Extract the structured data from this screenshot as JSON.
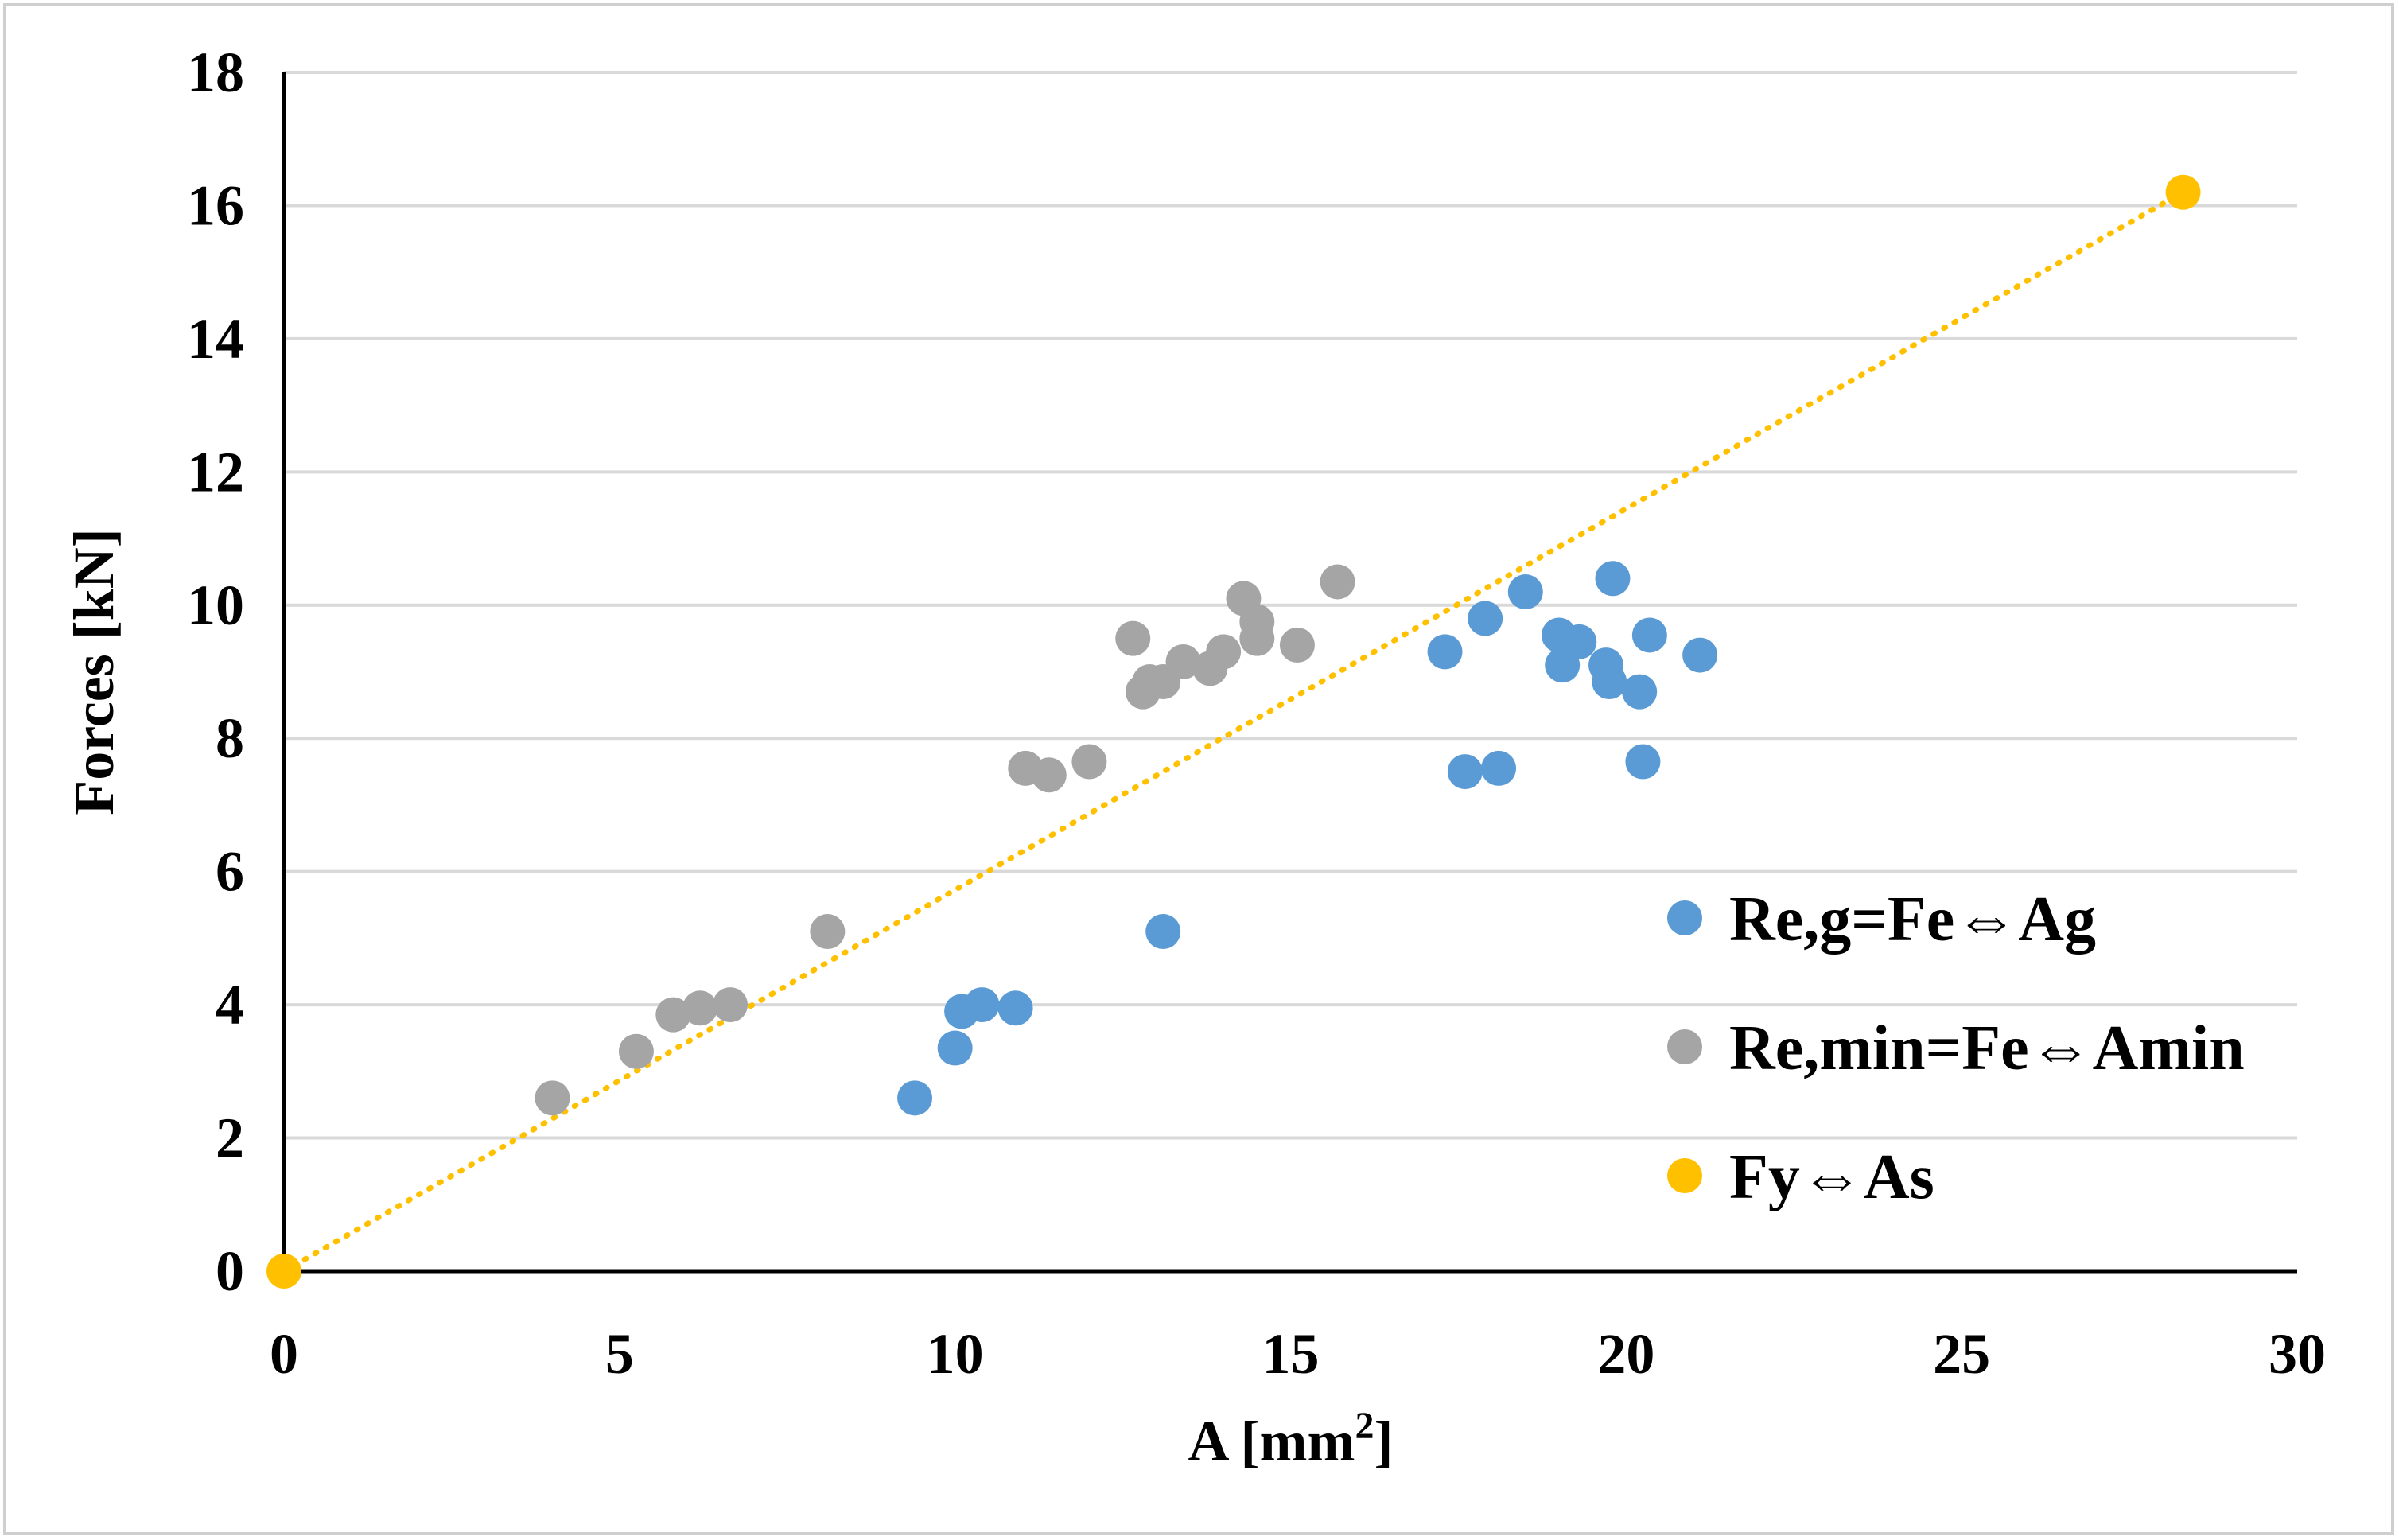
{
  "chart_data": {
    "type": "scatter",
    "title": "",
    "xlabel": "A [mm",
    "xlabel_superscript": "2",
    "xlabel_suffix": "]",
    "ylabel": "Forces [kN]",
    "xlim": [
      0,
      30
    ],
    "ylim": [
      0,
      18
    ],
    "x_ticks": [
      0,
      5,
      10,
      15,
      20,
      25,
      30
    ],
    "y_ticks": [
      0,
      2,
      4,
      6,
      8,
      10,
      12,
      14,
      16,
      18
    ],
    "grid": true,
    "legend_position": "right",
    "series": [
      {
        "name": "Re,g=Fe⇔Ag",
        "color": "#5B9BD5",
        "marker": "circle",
        "points": [
          [
            9.4,
            2.6
          ],
          [
            10.0,
            3.35
          ],
          [
            10.1,
            3.9
          ],
          [
            10.4,
            4.0
          ],
          [
            10.9,
            3.95
          ],
          [
            13.1,
            5.1
          ],
          [
            17.3,
            9.3
          ],
          [
            17.6,
            7.5
          ],
          [
            17.9,
            9.8
          ],
          [
            18.1,
            7.55
          ],
          [
            18.5,
            10.2
          ],
          [
            19.0,
            9.55
          ],
          [
            19.05,
            9.1
          ],
          [
            19.3,
            9.45
          ],
          [
            19.7,
            9.1
          ],
          [
            19.75,
            8.85
          ],
          [
            19.8,
            10.4
          ],
          [
            20.2,
            8.7
          ],
          [
            20.25,
            7.65
          ],
          [
            20.35,
            9.55
          ],
          [
            21.1,
            9.25
          ]
        ]
      },
      {
        "name": "Re,min=Fe⇔Amin",
        "color": "#A5A5A5",
        "marker": "circle",
        "points": [
          [
            4.0,
            2.6
          ],
          [
            5.25,
            3.3
          ],
          [
            5.8,
            3.85
          ],
          [
            6.2,
            3.95
          ],
          [
            6.65,
            4.0
          ],
          [
            8.1,
            5.1
          ],
          [
            11.05,
            7.55
          ],
          [
            11.4,
            7.45
          ],
          [
            12.0,
            7.65
          ],
          [
            12.65,
            9.5
          ],
          [
            12.8,
            8.7
          ],
          [
            12.9,
            8.85
          ],
          [
            13.1,
            8.85
          ],
          [
            13.4,
            9.15
          ],
          [
            13.8,
            9.05
          ],
          [
            14.0,
            9.3
          ],
          [
            14.3,
            10.1
          ],
          [
            14.5,
            9.5
          ],
          [
            14.5,
            9.75
          ],
          [
            15.1,
            9.4
          ],
          [
            15.7,
            10.35
          ]
        ]
      },
      {
        "name": "Fy⇔As",
        "color": "#FFC000",
        "marker": "circle",
        "points": [
          [
            0,
            0
          ],
          [
            28.3,
            16.2
          ]
        ]
      }
    ],
    "trendline": {
      "series": "Fy⇔As",
      "style": "dotted",
      "color": "#FFC000",
      "from": [
        0,
        0
      ],
      "to": [
        28.3,
        16.2
      ]
    }
  }
}
